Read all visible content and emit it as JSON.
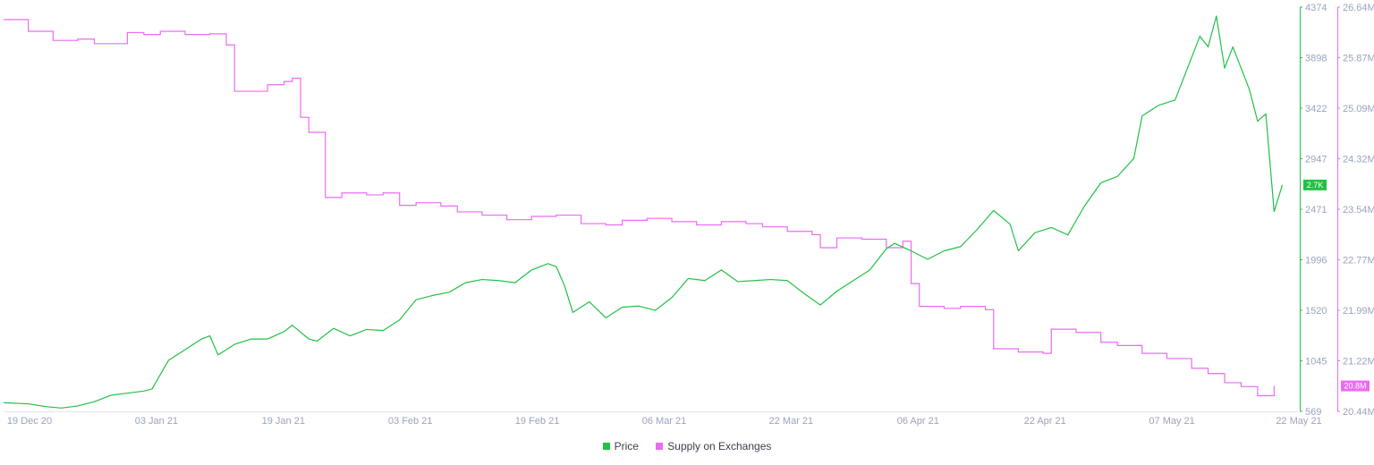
{
  "chart_data": {
    "type": "line",
    "title": "",
    "x_ticks": [
      "19 Dec 20",
      "03 Jan 21",
      "19 Jan 21",
      "03 Feb 21",
      "19 Feb 21",
      "06 Mar 21",
      "22 Mar 21",
      "06 Apr 21",
      "22 Apr 21",
      "07 May 21",
      "22 May 21"
    ],
    "x_range": [
      "2020-12-16",
      "2021-05-22"
    ],
    "legend_position": "bottom-center",
    "grid": false,
    "axes": {
      "price": {
        "side": "right-inner",
        "ticks": [
          "4374",
          "3898",
          "3422",
          "2947",
          "2471",
          "1996",
          "1520",
          "1045",
          "569"
        ],
        "range": [
          569,
          4374
        ],
        "last_value_label": "2.7K"
      },
      "supply": {
        "side": "right-outer",
        "ticks": [
          "26.64M",
          "25.87M",
          "25.09M",
          "24.32M",
          "23.54M",
          "22.77M",
          "21.99M",
          "21.22M",
          "20.44M"
        ],
        "range": [
          20.44,
          26.64
        ],
        "unit": "M",
        "last_value_label": "20.8M"
      }
    },
    "series": [
      {
        "name": "Price",
        "color": "#22c145",
        "axis": "price",
        "points": [
          [
            "2020-12-16",
            650
          ],
          [
            "2020-12-19",
            640
          ],
          [
            "2020-12-21",
            615
          ],
          [
            "2020-12-23",
            600
          ],
          [
            "2020-12-25",
            620
          ],
          [
            "2020-12-27",
            660
          ],
          [
            "2020-12-29",
            720
          ],
          [
            "2020-12-31",
            740
          ],
          [
            "2021-01-02",
            760
          ],
          [
            "2021-01-03",
            780
          ],
          [
            "2021-01-05",
            1050
          ],
          [
            "2021-01-07",
            1150
          ],
          [
            "2021-01-09",
            1250
          ],
          [
            "2021-01-10",
            1280
          ],
          [
            "2021-01-11",
            1100
          ],
          [
            "2021-01-13",
            1200
          ],
          [
            "2021-01-15",
            1250
          ],
          [
            "2021-01-17",
            1250
          ],
          [
            "2021-01-19",
            1320
          ],
          [
            "2021-01-20",
            1380
          ],
          [
            "2021-01-22",
            1250
          ],
          [
            "2021-01-23",
            1230
          ],
          [
            "2021-01-25",
            1350
          ],
          [
            "2021-01-27",
            1280
          ],
          [
            "2021-01-29",
            1340
          ],
          [
            "2021-01-31",
            1330
          ],
          [
            "2021-02-02",
            1430
          ],
          [
            "2021-02-04",
            1620
          ],
          [
            "2021-02-06",
            1660
          ],
          [
            "2021-02-08",
            1690
          ],
          [
            "2021-02-10",
            1780
          ],
          [
            "2021-02-12",
            1810
          ],
          [
            "2021-02-14",
            1800
          ],
          [
            "2021-02-16",
            1780
          ],
          [
            "2021-02-18",
            1900
          ],
          [
            "2021-02-20",
            1960
          ],
          [
            "2021-02-21",
            1930
          ],
          [
            "2021-02-22",
            1750
          ],
          [
            "2021-02-23",
            1500
          ],
          [
            "2021-02-25",
            1600
          ],
          [
            "2021-02-27",
            1450
          ],
          [
            "2021-03-01",
            1550
          ],
          [
            "2021-03-03",
            1560
          ],
          [
            "2021-03-05",
            1520
          ],
          [
            "2021-03-07",
            1640
          ],
          [
            "2021-03-09",
            1820
          ],
          [
            "2021-03-11",
            1800
          ],
          [
            "2021-03-13",
            1900
          ],
          [
            "2021-03-15",
            1790
          ],
          [
            "2021-03-17",
            1800
          ],
          [
            "2021-03-19",
            1810
          ],
          [
            "2021-03-21",
            1800
          ],
          [
            "2021-03-23",
            1680
          ],
          [
            "2021-03-25",
            1570
          ],
          [
            "2021-03-27",
            1700
          ],
          [
            "2021-03-29",
            1800
          ],
          [
            "2021-03-31",
            1900
          ],
          [
            "2021-04-02",
            2100
          ],
          [
            "2021-04-03",
            2150
          ],
          [
            "2021-04-05",
            2080
          ],
          [
            "2021-04-07",
            2000
          ],
          [
            "2021-04-09",
            2080
          ],
          [
            "2021-04-11",
            2120
          ],
          [
            "2021-04-13",
            2280
          ],
          [
            "2021-04-15",
            2460
          ],
          [
            "2021-04-17",
            2330
          ],
          [
            "2021-04-18",
            2080
          ],
          [
            "2021-04-20",
            2250
          ],
          [
            "2021-04-22",
            2300
          ],
          [
            "2021-04-24",
            2230
          ],
          [
            "2021-04-26",
            2500
          ],
          [
            "2021-04-28",
            2720
          ],
          [
            "2021-04-30",
            2780
          ],
          [
            "2021-05-02",
            2950
          ],
          [
            "2021-05-03",
            3350
          ],
          [
            "2021-05-05",
            3450
          ],
          [
            "2021-05-07",
            3500
          ],
          [
            "2021-05-09",
            3900
          ],
          [
            "2021-05-10",
            4100
          ],
          [
            "2021-05-11",
            4000
          ],
          [
            "2021-05-12",
            4290
          ],
          [
            "2021-05-13",
            3800
          ],
          [
            "2021-05-14",
            4000
          ],
          [
            "2021-05-16",
            3600
          ],
          [
            "2021-05-17",
            3300
          ],
          [
            "2021-05-18",
            3370
          ],
          [
            "2021-05-19",
            2450
          ],
          [
            "2021-05-20",
            2700
          ]
        ]
      },
      {
        "name": "Supply on Exchanges",
        "color": "#ea6cf2",
        "axis": "supply",
        "points": [
          [
            "2020-12-16",
            26.45
          ],
          [
            "2020-12-19",
            26.27
          ],
          [
            "2020-12-22",
            26.13
          ],
          [
            "2020-12-25",
            26.15
          ],
          [
            "2020-12-27",
            26.08
          ],
          [
            "2020-12-31",
            26.25
          ],
          [
            "2021-01-02",
            26.22
          ],
          [
            "2021-01-04",
            26.27
          ],
          [
            "2021-01-07",
            26.22
          ],
          [
            "2021-01-10",
            26.23
          ],
          [
            "2021-01-12",
            26.06
          ],
          [
            "2021-01-13",
            25.35
          ],
          [
            "2021-01-17",
            25.45
          ],
          [
            "2021-01-19",
            25.5
          ],
          [
            "2021-01-20",
            25.55
          ],
          [
            "2021-01-21",
            24.95
          ],
          [
            "2021-01-22",
            24.72
          ],
          [
            "2021-01-24",
            23.72
          ],
          [
            "2021-01-26",
            23.79
          ],
          [
            "2021-01-29",
            23.76
          ],
          [
            "2021-01-31",
            23.79
          ],
          [
            "2021-02-02",
            23.6
          ],
          [
            "2021-02-04",
            23.64
          ],
          [
            "2021-02-07",
            23.59
          ],
          [
            "2021-02-09",
            23.5
          ],
          [
            "2021-02-12",
            23.45
          ],
          [
            "2021-02-15",
            23.38
          ],
          [
            "2021-02-18",
            23.43
          ],
          [
            "2021-02-21",
            23.45
          ],
          [
            "2021-02-24",
            23.32
          ],
          [
            "2021-02-27",
            23.3
          ],
          [
            "2021-03-01",
            23.37
          ],
          [
            "2021-03-04",
            23.4
          ],
          [
            "2021-03-07",
            23.35
          ],
          [
            "2021-03-10",
            23.3
          ],
          [
            "2021-03-13",
            23.35
          ],
          [
            "2021-03-16",
            23.32
          ],
          [
            "2021-03-18",
            23.27
          ],
          [
            "2021-03-21",
            23.2
          ],
          [
            "2021-03-24",
            23.15
          ],
          [
            "2021-03-25",
            22.95
          ],
          [
            "2021-03-27",
            23.1
          ],
          [
            "2021-03-30",
            23.08
          ],
          [
            "2021-04-02",
            22.95
          ],
          [
            "2021-04-04",
            23.05
          ],
          [
            "2021-04-05",
            22.4
          ],
          [
            "2021-04-06",
            22.05
          ],
          [
            "2021-04-09",
            22.02
          ],
          [
            "2021-04-11",
            22.05
          ],
          [
            "2021-04-14",
            22.0
          ],
          [
            "2021-04-15",
            21.4
          ],
          [
            "2021-04-18",
            21.35
          ],
          [
            "2021-04-21",
            21.33
          ],
          [
            "2021-04-22",
            21.7
          ],
          [
            "2021-04-25",
            21.65
          ],
          [
            "2021-04-28",
            21.5
          ],
          [
            "2021-04-30",
            21.45
          ],
          [
            "2021-05-03",
            21.33
          ],
          [
            "2021-05-06",
            21.25
          ],
          [
            "2021-05-09",
            21.1
          ],
          [
            "2021-05-11",
            21.02
          ],
          [
            "2021-05-13",
            20.88
          ],
          [
            "2021-05-15",
            20.82
          ],
          [
            "2021-05-17",
            20.68
          ],
          [
            "2021-05-19",
            20.83
          ]
        ]
      }
    ]
  },
  "legend": {
    "items": [
      {
        "label": "Price",
        "color": "#22c145"
      },
      {
        "label": "Supply on Exchanges",
        "color": "#ea6cf2"
      }
    ]
  }
}
